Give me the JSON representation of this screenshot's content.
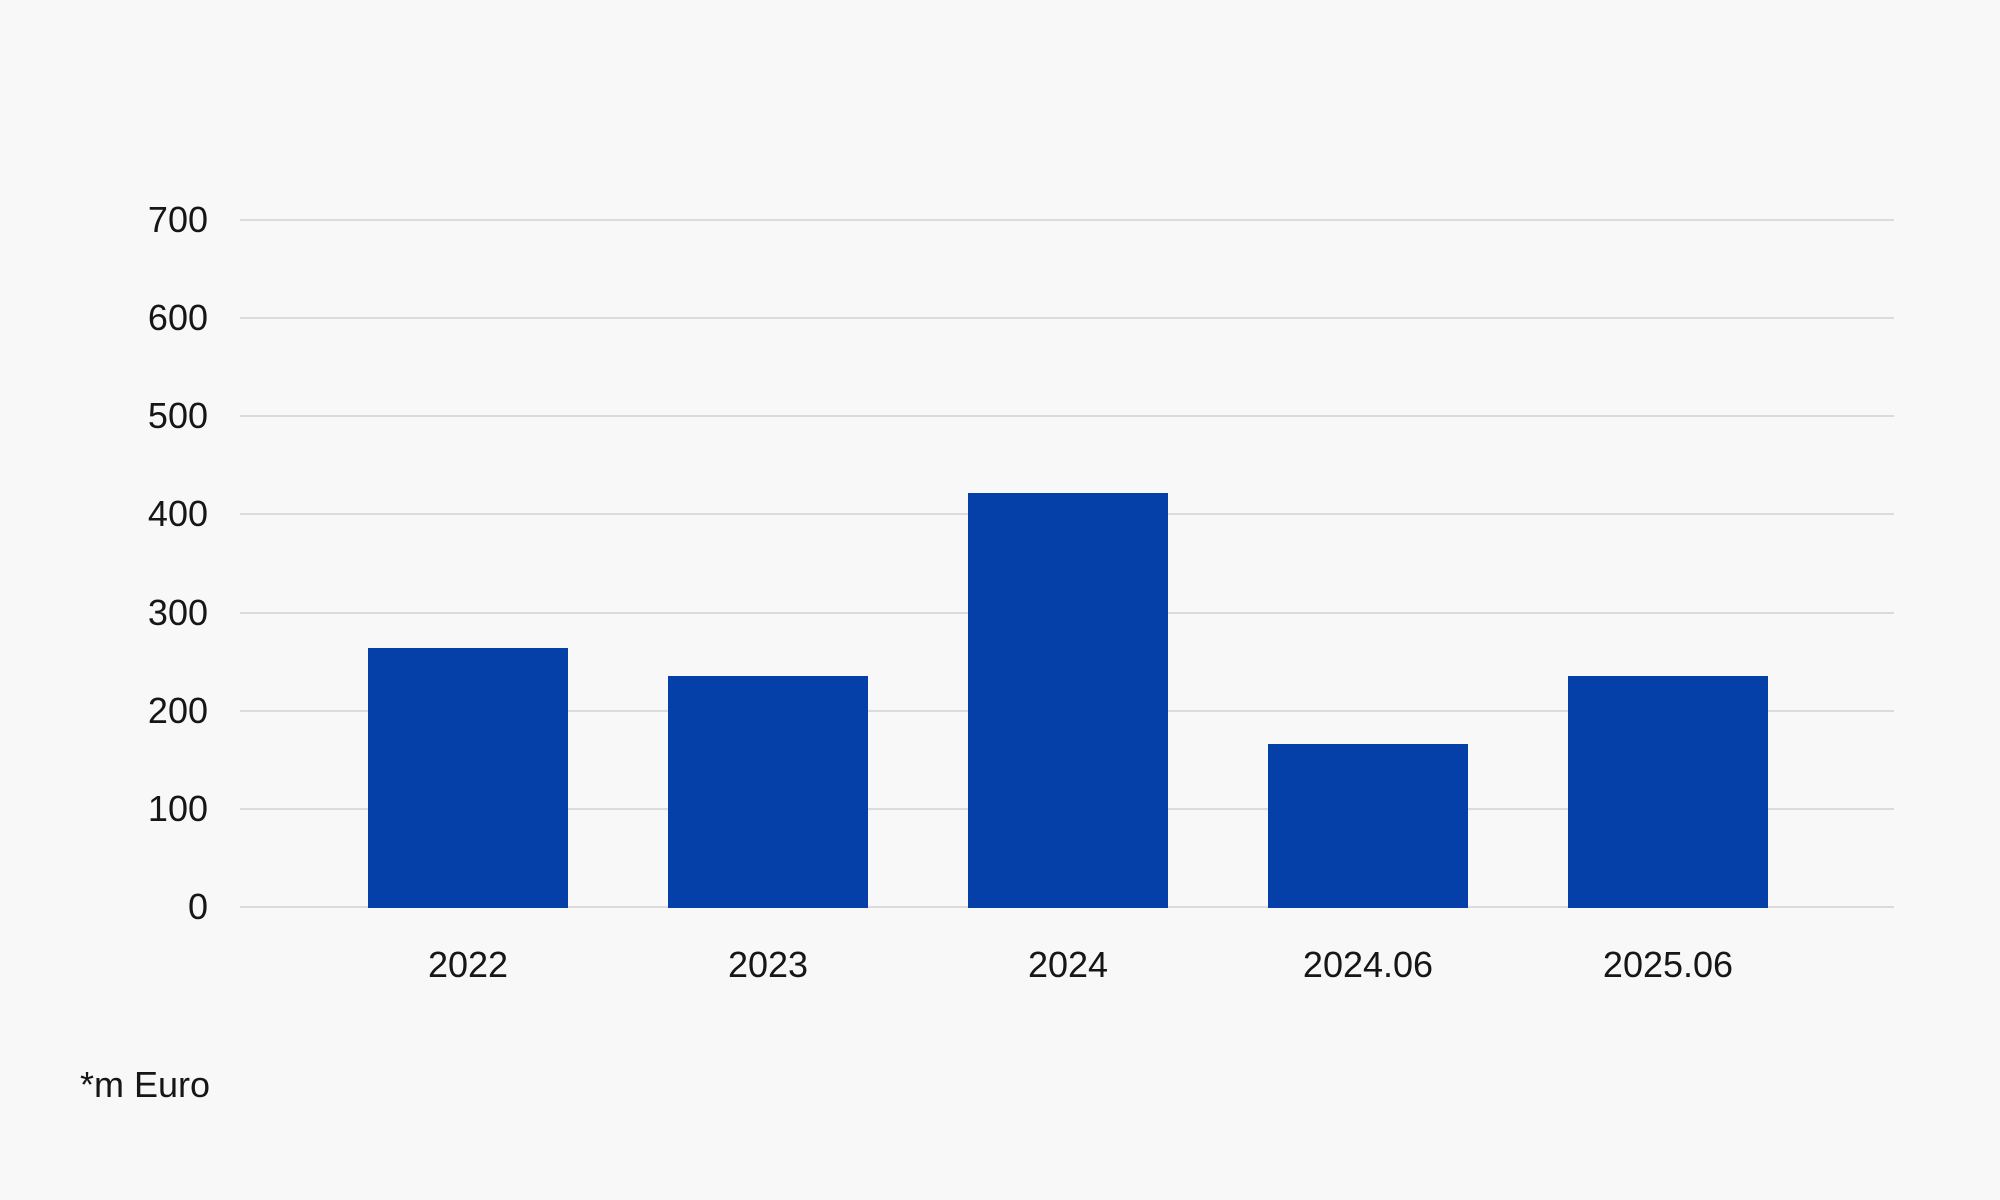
{
  "chart_data": {
    "type": "bar",
    "title": "",
    "categories": [
      "2022",
      "2023",
      "2024",
      "2024.06",
      "2025.06"
    ],
    "values": [
      265,
      236,
      423,
      167,
      236
    ],
    "xlabel": "",
    "ylabel": "",
    "ylim": [
      0,
      700
    ],
    "y_ticks": [
      0,
      100,
      200,
      300,
      400,
      500,
      600,
      700
    ],
    "grid": true,
    "legend": "none",
    "footnote": "*m Euro",
    "colors": {
      "bar": "#0540A8",
      "background": "#F8F8F8",
      "gridline": "#DBDBDB",
      "text": "#161616"
    }
  }
}
